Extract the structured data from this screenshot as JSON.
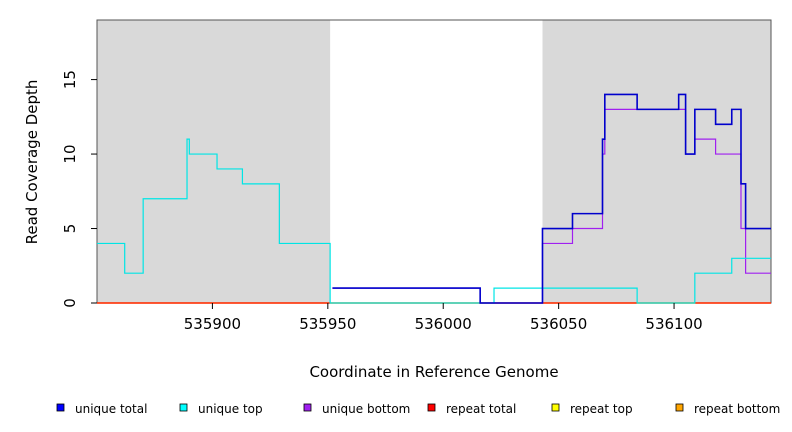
{
  "chart_data": {
    "type": "line",
    "title": "",
    "xlabel": "Coordinate in Reference Genome",
    "ylabel": "Read Coverage Depth",
    "xlim": [
      535850,
      536142
    ],
    "ylim": [
      0,
      19
    ],
    "x_ticks": [
      535900,
      535950,
      536000,
      536050,
      536100
    ],
    "y_ticks": [
      0,
      5,
      10,
      15
    ],
    "x_tick_labels": [
      "535900",
      "535950",
      "536000",
      "536050",
      "536100"
    ],
    "y_tick_labels": [
      "0",
      "5",
      "10",
      "15"
    ],
    "grid": false,
    "legend_position": "bottom",
    "shaded_regions": [
      {
        "x_start": 535850,
        "x_end": 535951,
        "color": "#d9d9d9"
      },
      {
        "x_start": 536043,
        "x_end": 536142,
        "color": "#d9d9d9"
      }
    ],
    "series": [
      {
        "name": "unique total",
        "color": "#0000cc",
        "step_points": [
          [
            535952,
            1
          ],
          [
            536016,
            0
          ],
          [
            536043,
            5
          ],
          [
            536056,
            6
          ],
          [
            536069,
            11
          ],
          [
            536070,
            14
          ],
          [
            536084,
            13
          ],
          [
            536102,
            14
          ],
          [
            536105,
            10
          ],
          [
            536109,
            13
          ],
          [
            536118,
            12
          ],
          [
            536125,
            13
          ],
          [
            536129,
            8
          ],
          [
            536131,
            5
          ],
          [
            536142,
            5
          ]
        ]
      },
      {
        "name": "unique top",
        "color": "#00e5e5",
        "step_points": [
          [
            535850,
            4
          ],
          [
            535862,
            2
          ],
          [
            535870,
            7
          ],
          [
            535889,
            11
          ],
          [
            535890,
            10
          ],
          [
            535902,
            9
          ],
          [
            535913,
            8
          ],
          [
            535929,
            4
          ],
          [
            535951,
            0
          ],
          [
            536022,
            1
          ],
          [
            536043,
            1
          ],
          [
            536084,
            0
          ],
          [
            536109,
            2
          ],
          [
            536125,
            3
          ],
          [
            536142,
            3
          ]
        ]
      },
      {
        "name": "unique bottom",
        "color": "#a020f0",
        "step_points": [
          [
            535952,
            1
          ],
          [
            536016,
            0
          ],
          [
            536043,
            4
          ],
          [
            536056,
            5
          ],
          [
            536069,
            10
          ],
          [
            536070,
            13
          ],
          [
            536084,
            13
          ],
          [
            536102,
            13
          ],
          [
            536105,
            10
          ],
          [
            536109,
            11
          ],
          [
            536118,
            10
          ],
          [
            536129,
            5
          ],
          [
            536131,
            2
          ],
          [
            536142,
            2
          ]
        ]
      },
      {
        "name": "repeat total",
        "color": "#ff0000",
        "step_points": [
          [
            535850,
            0
          ],
          [
            536142,
            0
          ]
        ]
      },
      {
        "name": "repeat top",
        "color": "#ffff00",
        "step_points": [
          [
            535850,
            0
          ],
          [
            536142,
            0
          ]
        ]
      },
      {
        "name": "repeat bottom",
        "color": "#ffa500",
        "step_points": [
          [
            535850,
            0
          ],
          [
            536142,
            0
          ]
        ]
      }
    ]
  },
  "legend": {
    "items": [
      {
        "label": "unique total",
        "color": "#0000ff"
      },
      {
        "label": "unique top",
        "color": "#00ffff"
      },
      {
        "label": "unique bottom",
        "color": "#a020f0"
      },
      {
        "label": "repeat total",
        "color": "#ff0000"
      },
      {
        "label": "repeat top",
        "color": "#ffff00"
      },
      {
        "label": "repeat bottom",
        "color": "#ffa500"
      }
    ]
  }
}
